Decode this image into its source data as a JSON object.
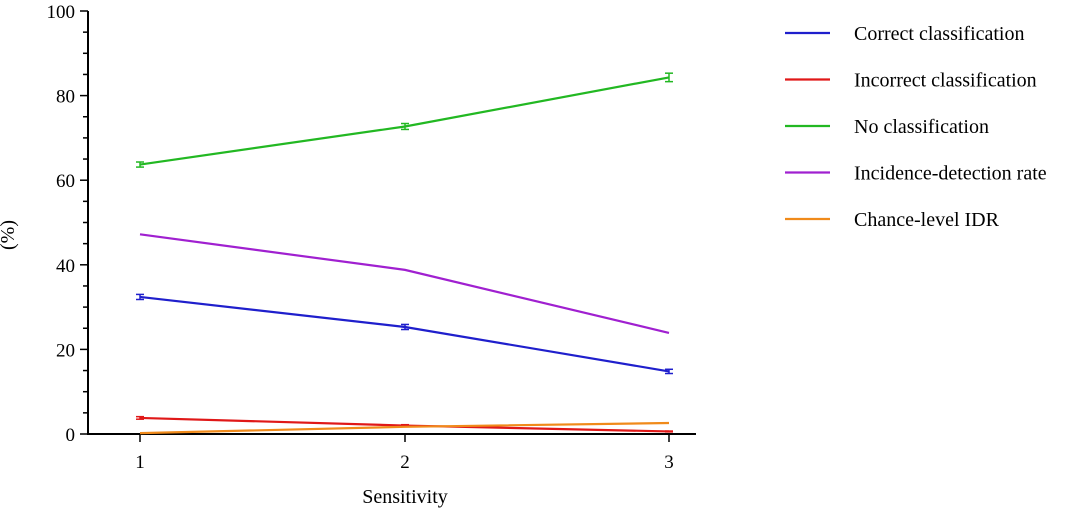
{
  "chart_data": {
    "type": "line",
    "title": "",
    "xlabel": "Sensitivity",
    "ylabel": "(%)",
    "x": [
      1,
      2,
      3
    ],
    "xticks": [
      "1",
      "2",
      "3"
    ],
    "ylim": [
      0,
      100
    ],
    "yticks": [
      "0",
      "20",
      "40",
      "60",
      "80",
      "100"
    ],
    "grid": false,
    "legend_position": "right",
    "series": [
      {
        "name": "Correct classification",
        "color": "#1f1fcc",
        "values": [
          32.4,
          25.3,
          14.8
        ],
        "errors": [
          0.6,
          0.6,
          0.5
        ]
      },
      {
        "name": "Incorrect classification",
        "color": "#e01818",
        "values": [
          3.8,
          2.0,
          0.6
        ],
        "errors": [
          0.3,
          0.2,
          0.1
        ]
      },
      {
        "name": "No classification",
        "color": "#22b822",
        "values": [
          63.7,
          72.7,
          84.3
        ],
        "errors": [
          0.6,
          0.7,
          1.0
        ]
      },
      {
        "name": "Incidence-detection rate",
        "color": "#a020d0",
        "values": [
          47.2,
          38.8,
          23.9
        ]
      },
      {
        "name": "Chance-level IDR",
        "color": "#f08a1a",
        "values": [
          0.2,
          1.7,
          2.6
        ]
      }
    ]
  }
}
